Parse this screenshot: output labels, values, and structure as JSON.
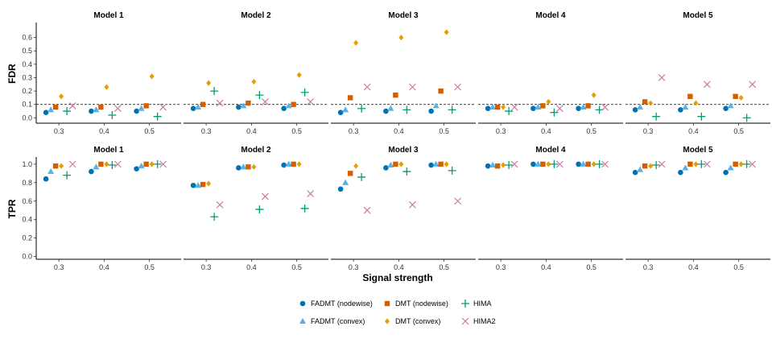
{
  "chart_data": {
    "type": "scatter",
    "xlabel": "Signal strength",
    "rows": [
      "FDR",
      "TPR"
    ],
    "models": [
      "Model 1",
      "Model 2",
      "Model 3",
      "Model 4",
      "Model 5"
    ],
    "x": [
      0.3,
      0.4,
      0.5
    ],
    "x_tick_labels": [
      "0.3",
      "0.4",
      "0.5"
    ],
    "reference_line": {
      "row": "FDR",
      "y": 0.1,
      "style": "dashed"
    },
    "ylim": {
      "FDR": [
        -0.04,
        0.7
      ],
      "TPR": [
        -0.03,
        1.06
      ]
    },
    "yticks": {
      "FDR": [
        0.0,
        0.1,
        0.2,
        0.3,
        0.4,
        0.5,
        0.6
      ],
      "TPR": [
        0.0,
        0.2,
        0.4,
        0.6,
        0.8,
        1.0
      ]
    },
    "ytick_labels": {
      "FDR": [
        "0.0",
        "0.1",
        "0.2",
        "0.3",
        "0.4",
        "0.5",
        "0.6"
      ],
      "TPR": [
        "0.0",
        "0.2",
        "0.4",
        "0.6",
        "0.8",
        "1.0"
      ]
    },
    "methods": [
      {
        "name": "FADMT (nodewise)",
        "color": "#0072B2",
        "shape": "circle"
      },
      {
        "name": "FADMT (convex)",
        "color": "#56B4E9",
        "shape": "triangle"
      },
      {
        "name": "DMT (nodewise)",
        "color": "#D55E00",
        "shape": "square"
      },
      {
        "name": "DMT (convex)",
        "color": "#E69F00",
        "shape": "diamond"
      },
      {
        "name": "HIMA",
        "color": "#009E73",
        "shape": "plus"
      },
      {
        "name": "HIMA2",
        "color": "#CC79A7",
        "shape": "cross"
      }
    ],
    "values": {
      "FDR": {
        "Model 1": [
          [
            0.04,
            0.05,
            0.05
          ],
          [
            0.06,
            0.06,
            0.07
          ],
          [
            0.08,
            0.08,
            0.09
          ],
          [
            0.16,
            0.23,
            0.31
          ],
          [
            0.05,
            0.02,
            0.01
          ],
          [
            0.09,
            0.07,
            0.08
          ]
        ],
        "Model 2": [
          [
            0.07,
            0.08,
            0.07
          ],
          [
            0.08,
            0.09,
            0.09
          ],
          [
            0.1,
            0.11,
            0.1
          ],
          [
            0.26,
            0.27,
            0.32
          ],
          [
            0.2,
            0.17,
            0.19
          ],
          [
            0.11,
            0.12,
            0.12
          ]
        ],
        "Model 3": [
          [
            0.04,
            0.05,
            0.05
          ],
          [
            0.06,
            0.07,
            0.09
          ],
          [
            0.15,
            0.17,
            0.2
          ],
          [
            0.56,
            0.6,
            0.64
          ],
          [
            0.07,
            0.06,
            0.06
          ],
          [
            0.23,
            0.23,
            0.23
          ]
        ],
        "Model 4": [
          [
            0.07,
            0.07,
            0.07
          ],
          [
            0.08,
            0.08,
            0.08
          ],
          [
            0.08,
            0.09,
            0.09
          ],
          [
            0.08,
            0.12,
            0.17
          ],
          [
            0.05,
            0.04,
            0.06
          ],
          [
            0.08,
            0.07,
            0.08
          ]
        ],
        "Model 5": [
          [
            0.06,
            0.06,
            0.07
          ],
          [
            0.08,
            0.08,
            0.09
          ],
          [
            0.12,
            0.16,
            0.16
          ],
          [
            0.11,
            0.11,
            0.15
          ],
          [
            0.01,
            0.01,
            0.0
          ],
          [
            0.3,
            0.25,
            0.25
          ]
        ]
      },
      "TPR": {
        "Model 1": [
          [
            0.84,
            0.92,
            0.95
          ],
          [
            0.92,
            0.97,
            0.98
          ],
          [
            0.98,
            1.0,
            1.0
          ],
          [
            0.98,
            1.0,
            1.0
          ],
          [
            0.88,
            0.99,
            1.0
          ],
          [
            1.0,
            1.0,
            1.0
          ]
        ],
        "Model 2": [
          [
            0.77,
            0.96,
            0.99
          ],
          [
            0.77,
            0.97,
            1.0
          ],
          [
            0.78,
            0.97,
            1.0
          ],
          [
            0.79,
            0.97,
            1.0
          ],
          [
            0.43,
            0.51,
            0.52
          ],
          [
            0.56,
            0.65,
            0.68
          ]
        ],
        "Model 3": [
          [
            0.73,
            0.96,
            0.99
          ],
          [
            0.8,
            0.99,
            1.0
          ],
          [
            0.9,
            1.0,
            1.0
          ],
          [
            0.98,
            1.0,
            1.0
          ],
          [
            0.86,
            0.92,
            0.93
          ],
          [
            0.5,
            0.56,
            0.6
          ]
        ],
        "Model 4": [
          [
            0.98,
            1.0,
            1.0
          ],
          [
            0.99,
            1.0,
            1.0
          ],
          [
            0.98,
            1.0,
            1.0
          ],
          [
            0.99,
            1.0,
            1.0
          ],
          [
            0.99,
            1.0,
            1.0
          ],
          [
            1.0,
            1.0,
            1.0
          ]
        ],
        "Model 5": [
          [
            0.91,
            0.91,
            0.91
          ],
          [
            0.94,
            0.96,
            0.96
          ],
          [
            0.98,
            1.0,
            1.0
          ],
          [
            0.98,
            1.0,
            1.0
          ],
          [
            0.99,
            1.0,
            1.0
          ],
          [
            1.0,
            1.0,
            1.0
          ]
        ]
      }
    },
    "legend_position": "bottom"
  }
}
